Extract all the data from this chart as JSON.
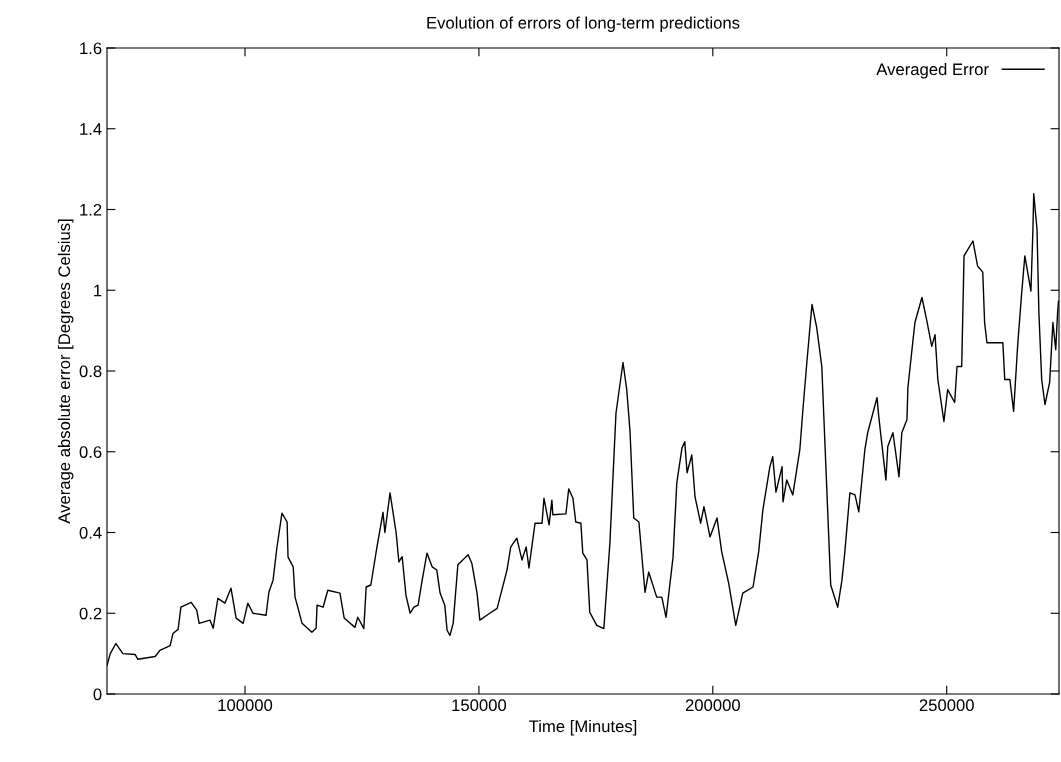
{
  "chart_data": {
    "type": "line",
    "title": "Evolution of errors of long-term predictions",
    "xlabel": "Time [Minutes]",
    "ylabel": "Average absolute error [Degrees Celsius]",
    "xlim": [
      70500,
      274000
    ],
    "ylim": [
      0,
      1.6
    ],
    "xticks": [
      100000,
      150000,
      200000,
      250000
    ],
    "yticks": [
      0,
      0.2,
      0.4,
      0.6,
      0.8,
      1,
      1.2,
      1.4,
      1.6
    ],
    "grid": false,
    "legend": "top right",
    "marker": "none",
    "line_style": "solid",
    "series": [
      {
        "name": "Averaged Error",
        "color": "#000000",
        "x": [
          70500,
          71200,
          72400,
          73900,
          76500,
          77100,
          80800,
          81800,
          84000,
          84600,
          85700,
          86300,
          88500,
          89700,
          90200,
          92500,
          93200,
          94200,
          95700,
          97000,
          98100,
          99600,
          100600,
          101700,
          104500,
          105100,
          106000,
          106800,
          107900,
          109000,
          109200,
          110300,
          110700,
          112200,
          114300,
          115200,
          115400,
          116700,
          117700,
          120300,
          121200,
          123500,
          124100,
          125400,
          125900,
          126900,
          128200,
          129500,
          129900,
          131000,
          132300,
          132900,
          133600,
          134400,
          135300,
          136100,
          137000,
          137800,
          138900,
          140000,
          141000,
          141700,
          142700,
          143200,
          143800,
          144500,
          145500,
          147700,
          148500,
          149600,
          150200,
          151700,
          153900,
          156000,
          156800,
          158100,
          159200,
          160100,
          160700,
          162000,
          163500,
          163900,
          165000,
          165600,
          165800,
          168600,
          169200,
          170100,
          170700,
          171800,
          172200,
          173100,
          173700,
          175200,
          176700,
          178000,
          179300,
          180800,
          181600,
          182300,
          183100,
          184200,
          185500,
          186300,
          188000,
          189100,
          190000,
          191500,
          192300,
          193400,
          194000,
          194500,
          195500,
          196200,
          197400,
          198100,
          199400,
          200900,
          201900,
          203400,
          204900,
          206400,
          208600,
          209800,
          210700,
          212200,
          212800,
          213500,
          214800,
          215000,
          215800,
          217100,
          218600,
          219200,
          220100,
          221200,
          222200,
          223300,
          223700,
          225200,
          226700,
          227600,
          228200,
          229300,
          230400,
          231200,
          232500,
          233100,
          235100,
          235500,
          237000,
          237400,
          238500,
          239800,
          240400,
          241500,
          241700,
          242300,
          243200,
          244700,
          245700,
          246800,
          247500,
          248100,
          249400,
          250200,
          251700,
          252200,
          253200,
          253400,
          253700,
          255600,
          256600,
          257700,
          258100,
          258600,
          262000,
          262400,
          263500,
          264300,
          265200,
          266000,
          266700,
          268000,
          268400,
          268600,
          269300,
          269700,
          270300,
          271000,
          272000,
          272700,
          273300,
          273700,
          273900
        ],
        "values": [
          0.071,
          0.1,
          0.125,
          0.1,
          0.098,
          0.086,
          0.093,
          0.108,
          0.12,
          0.15,
          0.16,
          0.215,
          0.227,
          0.207,
          0.175,
          0.183,
          0.163,
          0.237,
          0.225,
          0.262,
          0.188,
          0.175,
          0.225,
          0.2,
          0.195,
          0.252,
          0.282,
          0.361,
          0.448,
          0.426,
          0.339,
          0.315,
          0.24,
          0.175,
          0.153,
          0.163,
          0.22,
          0.215,
          0.257,
          0.25,
          0.188,
          0.165,
          0.19,
          0.162,
          0.265,
          0.27,
          0.364,
          0.45,
          0.4,
          0.498,
          0.4,
          0.327,
          0.34,
          0.245,
          0.2,
          0.215,
          0.22,
          0.277,
          0.349,
          0.315,
          0.307,
          0.25,
          0.22,
          0.158,
          0.145,
          0.175,
          0.32,
          0.345,
          0.323,
          0.25,
          0.183,
          0.195,
          0.212,
          0.307,
          0.364,
          0.386,
          0.332,
          0.364,
          0.312,
          0.423,
          0.423,
          0.485,
          0.419,
          0.48,
          0.444,
          0.446,
          0.508,
          0.485,
          0.426,
          0.423,
          0.349,
          0.332,
          0.202,
          0.17,
          0.162,
          0.374,
          0.696,
          0.821,
          0.754,
          0.65,
          0.436,
          0.426,
          0.252,
          0.302,
          0.24,
          0.24,
          0.19,
          0.339,
          0.523,
          0.609,
          0.625,
          0.548,
          0.592,
          0.488,
          0.423,
          0.464,
          0.389,
          0.436,
          0.352,
          0.274,
          0.17,
          0.25,
          0.265,
          0.352,
          0.456,
          0.563,
          0.588,
          0.5,
          0.563,
          0.476,
          0.53,
          0.493,
          0.605,
          0.696,
          0.821,
          0.965,
          0.908,
          0.811,
          0.696,
          0.27,
          0.215,
          0.282,
          0.349,
          0.498,
          0.493,
          0.451,
          0.605,
          0.647,
          0.734,
          0.684,
          0.53,
          0.613,
          0.647,
          0.538,
          0.647,
          0.68,
          0.759,
          0.824,
          0.92,
          0.982,
          0.927,
          0.861,
          0.89,
          0.779,
          0.675,
          0.754,
          0.722,
          0.811,
          0.811,
          0.92,
          1.085,
          1.122,
          1.06,
          1.045,
          0.92,
          0.87,
          0.87,
          0.779,
          0.779,
          0.7,
          0.87,
          0.99,
          1.085,
          0.998,
          1.14,
          1.239,
          1.151,
          0.945,
          0.779,
          0.717,
          0.772,
          0.92,
          0.853,
          0.945,
          0.973
        ]
      }
    ]
  }
}
